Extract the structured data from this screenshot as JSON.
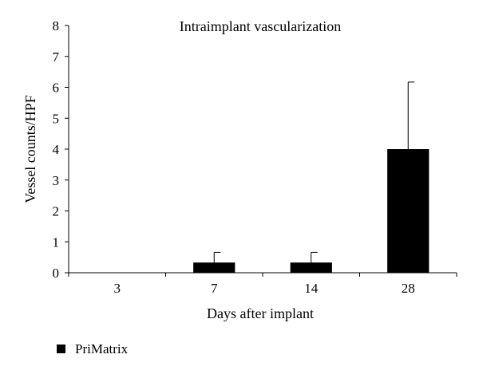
{
  "chart_data": {
    "type": "bar",
    "title": "Intraimplant vascularization",
    "xlabel": "Days after implant",
    "ylabel": "Vessel counts/HPF",
    "categories": [
      "3",
      "7",
      "14",
      "28"
    ],
    "series": [
      {
        "name": "PriMatrix",
        "values": [
          0,
          0.33,
          0.33,
          4.0
        ],
        "error_plus": [
          0,
          0.33,
          0.33,
          2.17
        ],
        "color": "#000000"
      }
    ],
    "ylim": [
      0,
      8
    ],
    "yticks": [
      "0",
      "1",
      "2",
      "3",
      "4",
      "5",
      "6",
      "7",
      "8"
    ],
    "grid": false,
    "legend_position": "bottom-left"
  }
}
